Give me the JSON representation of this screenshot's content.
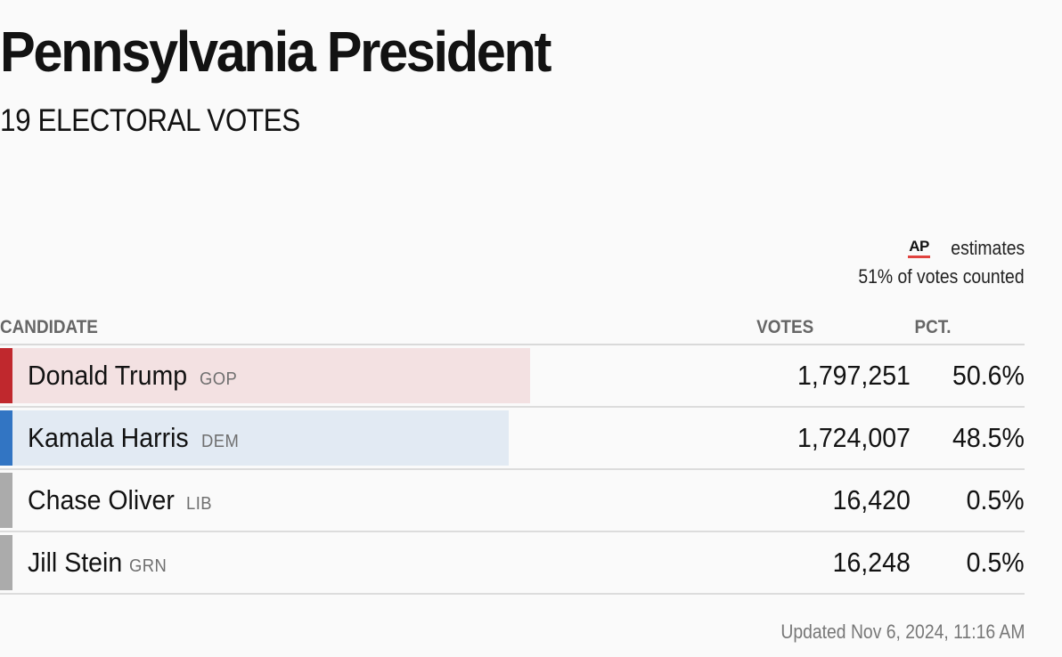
{
  "header": {
    "title": "Pennsylvania President",
    "subtitle": "19 ELECTORAL VOTES"
  },
  "estimates": {
    "logo_text": "AP",
    "label": "estimates",
    "counted": "51% of votes counted"
  },
  "table": {
    "columns": {
      "candidate": "CANDIDATE",
      "votes": "VOTES",
      "pct": "PCT."
    },
    "rows": [
      {
        "name": "Donald Trump",
        "party": "GOP",
        "votes": "1,797,251",
        "pct": "50.6%",
        "share": 50.6,
        "accent": "#c0282d",
        "fill": "#f3e1e2"
      },
      {
        "name": "Kamala Harris",
        "party": "DEM",
        "votes": "1,724,007",
        "pct": "48.5%",
        "share": 48.5,
        "accent": "#3275c3",
        "fill": "#e2eaf3"
      },
      {
        "name": "Chase Oliver",
        "party": "LIB",
        "votes": "16,420",
        "pct": "0.5%",
        "share": 0.5,
        "accent": "#ababab",
        "fill": ""
      },
      {
        "name": "Jill Stein",
        "party": "GRN",
        "votes": "16,248",
        "pct": "0.5%",
        "share": 0.5,
        "accent": "#ababab",
        "fill": ""
      }
    ]
  },
  "footer": {
    "updated": "Updated Nov 6, 2024, 11:16 AM"
  }
}
